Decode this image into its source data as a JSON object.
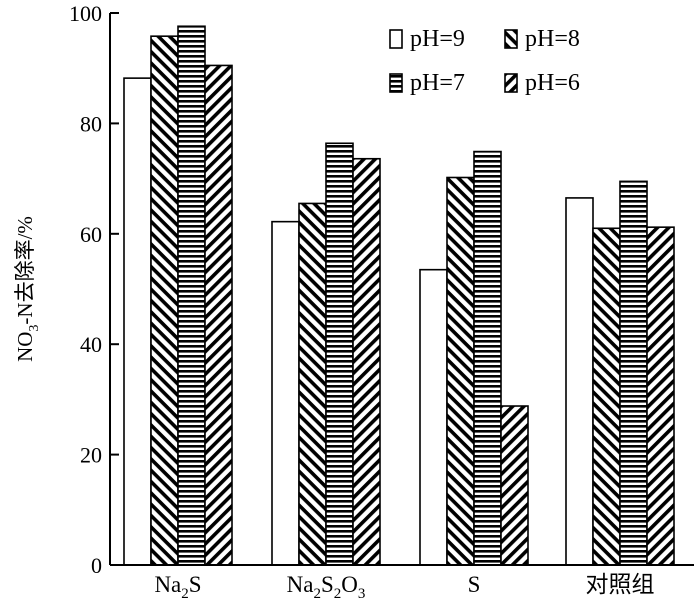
{
  "chart_data": {
    "type": "bar",
    "categories": [
      {
        "main": "Na",
        "sub1": "2",
        "mid": "S",
        "sub2": "",
        "tail": "",
        "sub3": ""
      },
      {
        "main": "Na",
        "sub1": "2",
        "mid": "S",
        "sub2": "2",
        "tail": "O",
        "sub3": "3"
      },
      {
        "main": "S",
        "sub1": "",
        "mid": "",
        "sub2": "",
        "tail": "",
        "sub3": ""
      },
      {
        "main": "对照组",
        "sub1": "",
        "mid": "",
        "sub2": "",
        "tail": "",
        "sub3": ""
      }
    ],
    "series": [
      {
        "name": "pH=9",
        "pattern": "empty",
        "values": [
          88.2,
          62.2,
          53.5,
          66.5
        ]
      },
      {
        "name": "pH=8",
        "pattern": "backslash",
        "values": [
          95.8,
          65.5,
          70.2,
          61.0
        ]
      },
      {
        "name": "pH=7",
        "pattern": "horizontal",
        "values": [
          97.6,
          76.4,
          74.9,
          69.5
        ]
      },
      {
        "name": "pH=6",
        "pattern": "slash",
        "values": [
          90.5,
          73.6,
          28.8,
          61.2
        ]
      }
    ],
    "ylabel": {
      "pre": "NO",
      "sub": "3",
      "post": "-N去除率/%"
    },
    "xlabel": "",
    "ylim": [
      0,
      100
    ],
    "yticks": [
      0,
      20,
      40,
      60,
      80,
      100
    ],
    "legend_position": "top-right",
    "grid": false
  }
}
